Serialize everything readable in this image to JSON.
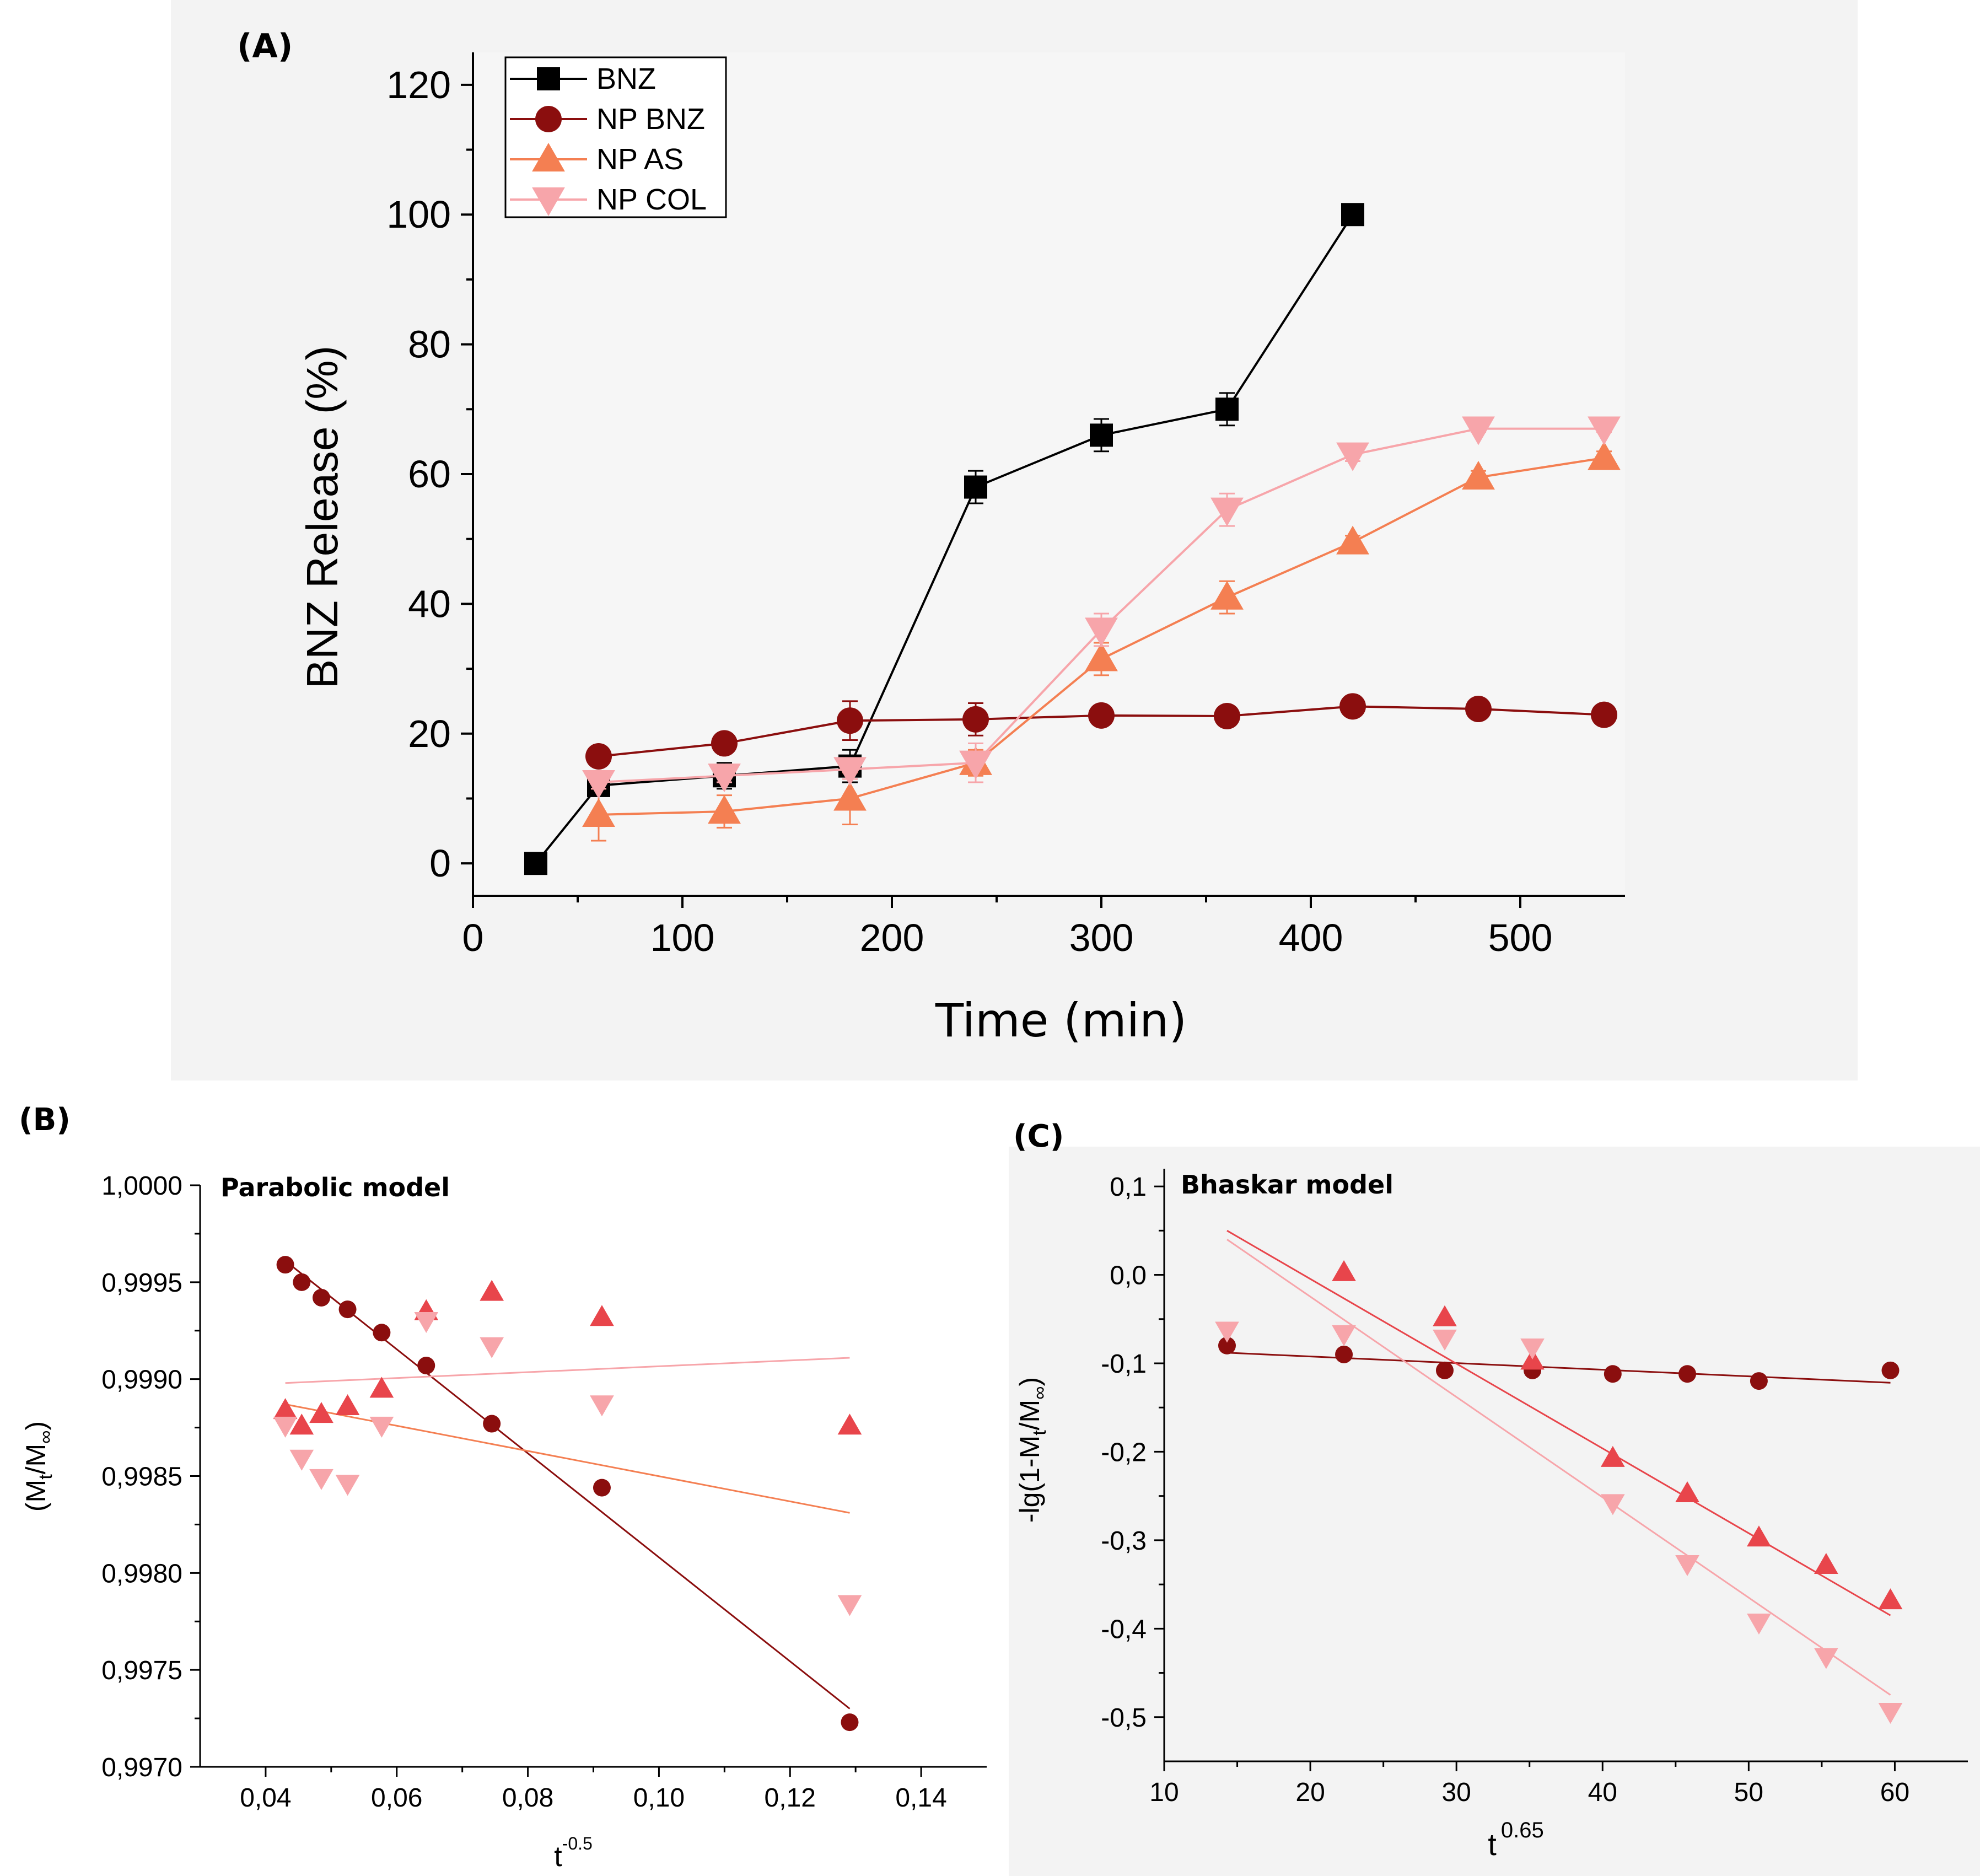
{
  "colors": {
    "BNZ": "#000000",
    "NP_BNZ": "#8b0e0e",
    "NP_AS": "#f47f52",
    "NP_COL": "#f7a5aa",
    "AS_tri_C": "#e8454b",
    "grey": "#f3f3f3"
  },
  "chart_data": [
    {
      "panel": "(A)",
      "type": "line",
      "title": "",
      "xlabel": "Time (min)",
      "ylabel": "BNZ Release (%)",
      "xlim": [
        0,
        550
      ],
      "ylim": [
        -5,
        125
      ],
      "x_ticks": [
        0,
        100,
        200,
        300,
        400,
        500
      ],
      "x_tick_labels": [
        "0",
        "100",
        "200",
        "300",
        "400",
        "500"
      ],
      "y_ticks": [
        0,
        20,
        40,
        60,
        80,
        100,
        120
      ],
      "y_tick_labels": [
        "0",
        "20",
        "40",
        "60",
        "80",
        "100",
        "120"
      ],
      "legend": "top-left",
      "series": [
        {
          "name": "BNZ",
          "key": "BNZ",
          "marker": "square",
          "x": [
            30,
            60,
            120,
            180,
            240,
            300,
            360,
            420
          ],
          "y": [
            0,
            12,
            13.5,
            15,
            58,
            66,
            70,
            100
          ],
          "err": [
            0,
            1.5,
            2,
            2.5,
            2.5,
            2.5,
            2.5,
            0
          ]
        },
        {
          "name": "NP BNZ",
          "key": "NP_BNZ",
          "marker": "circle",
          "x": [
            60,
            120,
            180,
            240,
            300,
            360,
            420,
            480,
            540
          ],
          "y": [
            16.5,
            18.5,
            22,
            22.2,
            22.8,
            22.7,
            24.2,
            23.8,
            22.9
          ],
          "err": [
            1,
            1,
            3,
            2.5,
            0.5,
            0.5,
            0.5,
            0.5,
            0.5
          ]
        },
        {
          "name": "NP AS",
          "key": "NP_AS",
          "marker": "triangle-up",
          "x": [
            60,
            120,
            180,
            240,
            300,
            360,
            420,
            480,
            540
          ],
          "y": [
            7.5,
            8,
            10,
            15.5,
            31.5,
            41,
            49.5,
            59.5,
            62.5
          ],
          "err": [
            4,
            2.5,
            4,
            2,
            2.5,
            2.5,
            1,
            1,
            1
          ]
        },
        {
          "name": "NP COL",
          "key": "NP_COL",
          "marker": "triangle-down",
          "x": [
            60,
            120,
            180,
            240,
            300,
            360,
            420,
            480,
            540
          ],
          "y": [
            12.5,
            13.5,
            14.5,
            15.5,
            36,
            54.5,
            63,
            67,
            67
          ],
          "err": [
            1,
            1,
            1.5,
            3,
            2.5,
            2.5,
            1,
            0.5,
            0.5
          ]
        }
      ]
    },
    {
      "panel": "(B)",
      "type": "scatter",
      "title": "Parabolic model",
      "xlabel_base": "t",
      "xlabel_sup": "-0.5",
      "ylabel_parts": [
        "(M",
        "t",
        "/M",
        "∞",
        ")"
      ],
      "xlim": [
        0.03,
        0.15
      ],
      "ylim": [
        0.997,
        1.0
      ],
      "x_ticks": [
        0.04,
        0.06,
        0.08,
        0.1,
        0.12,
        0.14
      ],
      "x_tick_labels": [
        "0,04",
        "0,06",
        "0,08",
        "0,10",
        "0,12",
        "0,14"
      ],
      "y_ticks": [
        0.997,
        0.9975,
        0.998,
        0.9985,
        0.999,
        0.9995,
        1.0
      ],
      "y_tick_labels": [
        "0,9970",
        "0,9975",
        "0,9980",
        "0,9985",
        "0,9990",
        "0,9995",
        "1,0000"
      ],
      "series": [
        {
          "name": "NP BNZ",
          "key": "NP_BNZ",
          "marker": "circle",
          "x": [
            0.043,
            0.0455,
            0.0485,
            0.0525,
            0.0577,
            0.0645,
            0.0745,
            0.0913,
            0.1291
          ],
          "y": [
            0.99959,
            0.9995,
            0.99942,
            0.99936,
            0.99924,
            0.99907,
            0.99877,
            0.99844,
            0.99723
          ],
          "fit": [
            [
              0.043,
              0.99961
            ],
            [
              0.1291,
              0.9973
            ]
          ]
        },
        {
          "name": "NP AS",
          "key": "NP_AS",
          "marker": "triangle-up",
          "x": [
            0.043,
            0.0455,
            0.0485,
            0.0525,
            0.0577,
            0.0645,
            0.0745,
            0.0913,
            0.1291
          ],
          "y": [
            0.99884,
            0.99876,
            0.99882,
            0.99886,
            0.99895,
            0.99935,
            0.99945,
            0.99932,
            0.99876
          ],
          "fit": [
            [
              0.043,
              0.99887
            ],
            [
              0.1291,
              0.99831
            ]
          ]
        },
        {
          "name": "NP COL",
          "key": "NP_COL",
          "marker": "triangle-down",
          "x": [
            0.043,
            0.0455,
            0.0485,
            0.0525,
            0.0577,
            0.0645,
            0.0745,
            0.0913,
            0.1291
          ],
          "y": [
            0.99876,
            0.99859,
            0.99849,
            0.99846,
            0.99876,
            0.9993,
            0.99917,
            0.99887,
            0.99784
          ],
          "fit": [
            [
              0.043,
              0.99898
            ],
            [
              0.1291,
              0.99911
            ]
          ]
        }
      ]
    },
    {
      "panel": "(C)",
      "type": "scatter",
      "title": "Bhaskar model",
      "xlabel_base": "t",
      "xlabel_sup": "0.65",
      "ylabel_parts": [
        "-lg(1-M",
        "t",
        "/M",
        "∞",
        ")"
      ],
      "xlim": [
        10,
        65
      ],
      "ylim": [
        -0.55,
        0.12
      ],
      "x_ticks": [
        10,
        20,
        30,
        40,
        50,
        60
      ],
      "x_tick_labels": [
        "10",
        "20",
        "30",
        "40",
        "50",
        "60"
      ],
      "y_ticks": [
        -0.5,
        -0.4,
        -0.3,
        -0.2,
        -0.1,
        0.0,
        0.1
      ],
      "y_tick_labels": [
        "-0,5",
        "-0,4",
        "-0,3",
        "-0,2",
        "-0,1",
        "0,0",
        "0,1"
      ],
      "series": [
        {
          "name": "NP BNZ",
          "key": "NP_BNZ",
          "marker": "circle",
          "x": [
            14.3,
            22.3,
            29.2,
            35.2,
            40.7,
            45.8,
            50.7,
            59.7
          ],
          "y": [
            -0.08,
            -0.09,
            -0.108,
            -0.108,
            -0.112,
            -0.112,
            -0.12,
            -0.108
          ],
          "fit": [
            [
              14.3,
              -0.088
            ],
            [
              59.7,
              -0.122
            ]
          ]
        },
        {
          "name": "NP AS",
          "key": "NP_AS",
          "marker": "triangle-up",
          "x": [
            22.3,
            29.2,
            35.2,
            40.7,
            45.8,
            50.7,
            55.3,
            59.7
          ],
          "y": [
            0.003,
            -0.048,
            -0.097,
            -0.207,
            -0.247,
            -0.297,
            -0.328,
            -0.368
          ],
          "fit": [
            [
              14.3,
              0.05
            ],
            [
              59.7,
              -0.385
            ]
          ]
        },
        {
          "name": "NP COL",
          "key": "NP_COL",
          "marker": "triangle-down",
          "x": [
            14.3,
            22.3,
            29.2,
            35.2,
            40.7,
            45.8,
            50.7,
            55.3,
            59.7
          ],
          "y": [
            -0.063,
            -0.067,
            -0.072,
            -0.082,
            -0.258,
            -0.327,
            -0.393,
            -0.432,
            -0.494
          ],
          "fit": [
            [
              14.3,
              0.04
            ],
            [
              59.7,
              -0.475
            ]
          ]
        }
      ]
    }
  ]
}
